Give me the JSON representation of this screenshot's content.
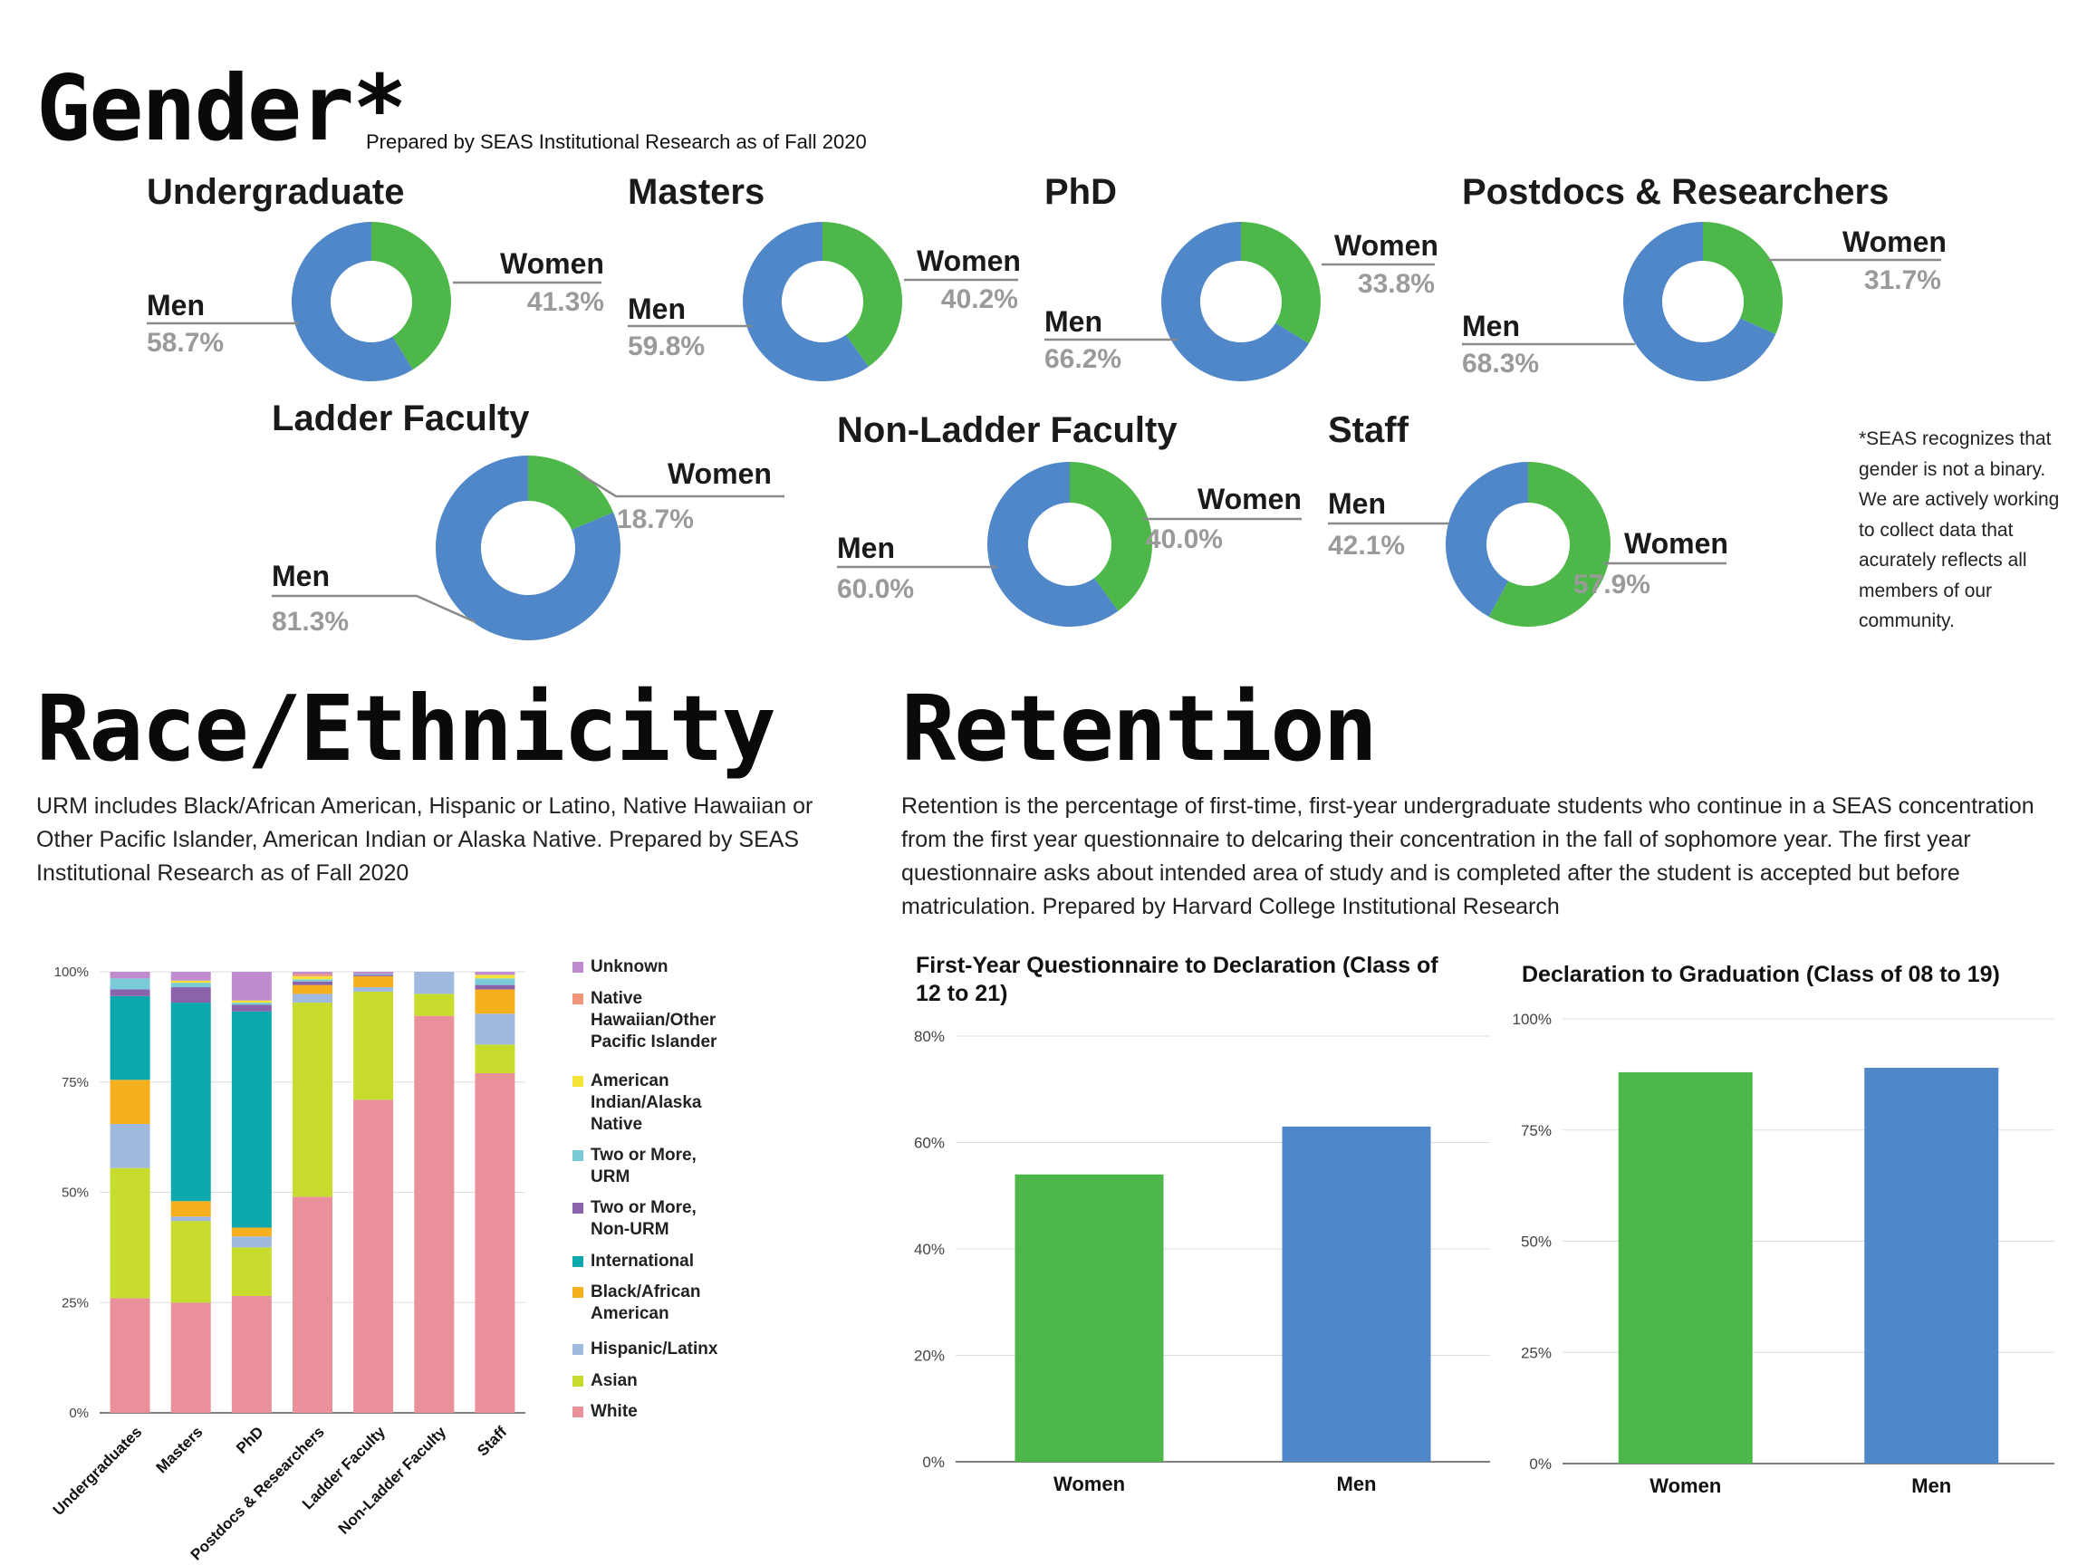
{
  "gender": {
    "title": "Gender*",
    "prepared": "Prepared by SEAS Institutional Research as of Fall 2020",
    "footnote": "*SEAS recognizes that gender is not a binary. We are actively working to collect data that acurately reflects all members of our community."
  },
  "race": {
    "title": "Race/Ethnicity",
    "description": "URM includes Black/African American, Hispanic or Latino, Native Hawaiian or Other Pacific Islander, American Indian or Alaska Native. Prepared by SEAS Institutional Research as of Fall 2020"
  },
  "retention": {
    "title": "Retention",
    "description": "Retention is the percentage of first-time, first-year undergraduate students who continue in a SEAS concentration from the first year questionnaire to delcaring their concentration in the fall of sophomore year. The first year questionnaire asks about intended area of study and is completed after the student is accepted but before matriculation. Prepared by Harvard College Institutional Research"
  },
  "colors": {
    "women": "#4db849",
    "men": "#4f87c8",
    "grid": "#dddddd"
  },
  "chart_data": [
    {
      "type": "pie",
      "title": "Undergraduate",
      "labels": [
        "Women",
        "Men"
      ],
      "values": [
        41.3,
        58.7
      ],
      "display": [
        "41.3%",
        "58.7%"
      ]
    },
    {
      "type": "pie",
      "title": "Masters",
      "labels": [
        "Women",
        "Men"
      ],
      "values": [
        40.2,
        59.8
      ],
      "display": [
        "40.2%",
        "59.8%"
      ]
    },
    {
      "type": "pie",
      "title": "PhD",
      "labels": [
        "Women",
        "Men"
      ],
      "values": [
        33.8,
        66.2
      ],
      "display": [
        "33.8%",
        "66.2%"
      ]
    },
    {
      "type": "pie",
      "title": "Postdocs & Researchers",
      "labels": [
        "Women",
        "Men"
      ],
      "values": [
        31.7,
        68.3
      ],
      "display": [
        "31.7%",
        "68.3%"
      ]
    },
    {
      "type": "pie",
      "title": "Ladder Faculty",
      "labels": [
        "Women",
        "Men"
      ],
      "values": [
        18.7,
        81.3
      ],
      "display": [
        "18.7%",
        "81.3%"
      ]
    },
    {
      "type": "pie",
      "title": "Non-Ladder Faculty",
      "labels": [
        "Women",
        "Men"
      ],
      "values": [
        40.0,
        60.0
      ],
      "display": [
        "40.0%",
        "60.0%"
      ]
    },
    {
      "type": "pie",
      "title": "Staff",
      "labels": [
        "Women",
        "Men"
      ],
      "values": [
        57.9,
        42.1
      ],
      "display": [
        "57.9%",
        "42.1%"
      ]
    },
    {
      "type": "bar",
      "stacked": true,
      "title": "",
      "categories": [
        "Undergraduates",
        "Masters",
        "PhD",
        "Postdocs & Researchers",
        "Ladder Faculty",
        "Non-Ladder Faculty",
        "Staff"
      ],
      "yticks": [
        "0%",
        "25%",
        "50%",
        "75%",
        "100%"
      ],
      "ylim": [
        0,
        100
      ],
      "legend_position": "right",
      "series": [
        {
          "name": "White",
          "color": "#e9909b",
          "values": [
            26,
            25,
            26.5,
            49,
            71,
            90,
            77
          ]
        },
        {
          "name": "Asian",
          "color": "#c7dc2d",
          "values": [
            29.5,
            18.5,
            11,
            44,
            24.5,
            5,
            6.5
          ]
        },
        {
          "name": "Hispanic/Latinx",
          "color": "#9fb9df",
          "values": [
            10,
            1,
            2.5,
            2,
            1,
            5,
            7
          ]
        },
        {
          "name": "Black/African American",
          "color": "#f7b01d",
          "values": [
            10,
            3.5,
            2,
            2,
            2.5,
            0,
            5.5
          ]
        },
        {
          "name": "International",
          "color": "#0ba9ad",
          "values": [
            19,
            45,
            49,
            0,
            0,
            0,
            0
          ]
        },
        {
          "name": "Two or More, Non-URM",
          "color": "#8b63ad",
          "values": [
            1.5,
            3.5,
            1.5,
            0.8,
            0.3,
            0,
            1
          ]
        },
        {
          "name": "Two or More, URM",
          "color": "#7acbd7",
          "values": [
            2.5,
            1,
            0.5,
            0.5,
            0.2,
            0,
            1.5
          ]
        },
        {
          "name": "American Indian/Alaska Native",
          "color": "#f5e33a",
          "values": [
            0,
            0.5,
            0.5,
            0.7,
            0,
            0,
            0.8
          ]
        },
        {
          "name": "Native Hawaiian/Other Pacific Islander",
          "color": "#f0957a",
          "values": [
            0,
            0,
            0,
            0.5,
            0,
            0,
            0
          ]
        },
        {
          "name": "Unknown",
          "color": "#c08bcf",
          "values": [
            1.5,
            2,
            6.5,
            0.5,
            0.5,
            0,
            0.7
          ]
        }
      ]
    },
    {
      "type": "bar",
      "title": "First-Year Questionnaire to Declaration (Class of 12 to 21)",
      "categories": [
        "Women",
        "Men"
      ],
      "values": [
        54,
        63
      ],
      "yticks": [
        "0%",
        "20%",
        "40%",
        "60%",
        "80%"
      ],
      "ylim": [
        0,
        80
      ]
    },
    {
      "type": "bar",
      "title": "Declaration to Graduation (Class of 08 to 19)",
      "categories": [
        "Women",
        "Men"
      ],
      "values": [
        88,
        89
      ],
      "yticks": [
        "0%",
        "25%",
        "50%",
        "75%",
        "100%"
      ],
      "ylim": [
        0,
        100
      ]
    }
  ]
}
